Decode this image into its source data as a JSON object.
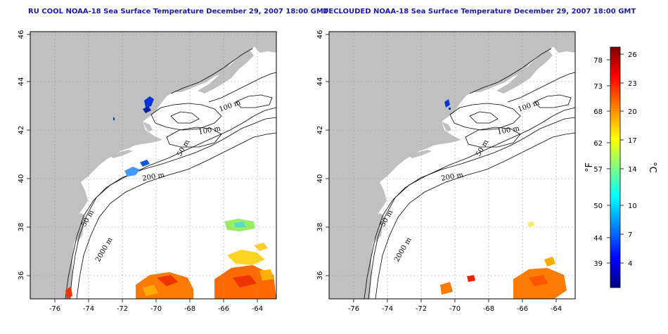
{
  "left_panel": {
    "title": "RU COOL NOAA-18 Sea Surface Temperature December 29, 2007 18:00 GMT"
  },
  "right_panel": {
    "title": "DECLOUDED NOAA-18 Sea Surface Temperature December 29, 2007 18:00 GMT"
  },
  "map": {
    "lon_ticks": [
      "-76",
      "-74",
      "-72",
      "-70",
      "-68",
      "-66",
      "-64"
    ],
    "lat_ticks": [
      "46",
      "44",
      "42",
      "40",
      "38",
      "36"
    ],
    "contour_labels": [
      "100 m",
      "100 m",
      "50 m",
      "200 m",
      "50 m",
      "2000 m"
    ],
    "land_color": "#c0c0c0",
    "ocean_color": "#ffffff",
    "grid_style": "dotted"
  },
  "colorbar": {
    "fahrenheit_ticks": [
      "78",
      "73",
      "68",
      "62",
      "57",
      "50",
      "44",
      "39"
    ],
    "celsius_ticks": [
      "26",
      "23",
      "20",
      "17",
      "14",
      "10",
      "7",
      "4"
    ],
    "fahrenheit_unit": "°F",
    "celsius_unit": "°C",
    "gradient_colors": [
      "#00007f",
      "#0000ff",
      "#0080ff",
      "#00ffff",
      "#80ff80",
      "#ffff00",
      "#ff8000",
      "#ff0000",
      "#7f0000"
    ]
  }
}
